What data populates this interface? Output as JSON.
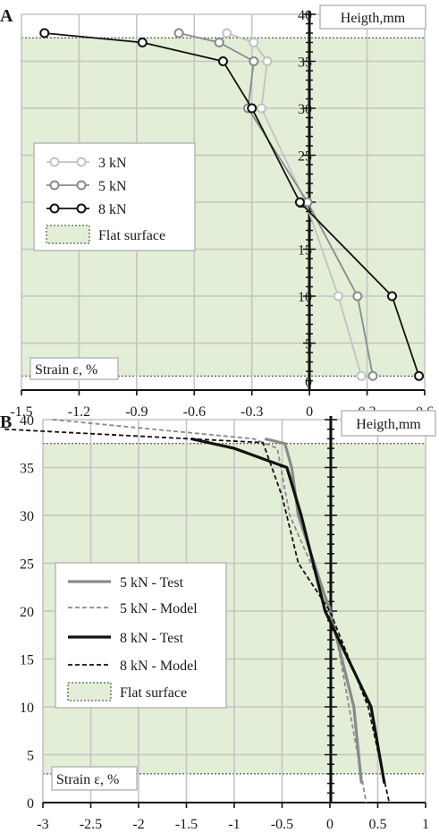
{
  "chart_data": [
    {
      "panel_label": "A",
      "type": "line",
      "xlabel": "Strain ε, %",
      "ylabel": "Heigth,mm",
      "x_ticks": [
        "-1.5",
        "-1.2",
        "-0.9",
        "-0.6",
        "-0.3",
        "0",
        "0.3",
        "0.6"
      ],
      "y_ticks": [
        "0",
        "5",
        "10",
        "15",
        "20",
        "25",
        "30",
        "35",
        "40"
      ],
      "xlim": [
        -1.5,
        0.6
      ],
      "ylim": [
        0,
        40
      ],
      "flat_surface": {
        "name": "Flat surface",
        "y_min": 1.5,
        "y_max": 37.5,
        "color": "#e3eed6"
      },
      "series": [
        {
          "name": "3 kN",
          "color": "#c2c2c2",
          "marker": "circle",
          "x": [
            -0.43,
            -0.29,
            -0.22,
            -0.25,
            -0.02,
            0.15,
            0.27
          ],
          "y": [
            38,
            37,
            35,
            30,
            20,
            10,
            1.5
          ]
        },
        {
          "name": "5 kN",
          "color": "#8a8a8a",
          "marker": "circle",
          "x": [
            -0.68,
            -0.47,
            -0.29,
            -0.32,
            -0.01,
            0.25,
            0.33
          ],
          "y": [
            38,
            37,
            35,
            30,
            20,
            10,
            1.5
          ]
        },
        {
          "name": "8 kN",
          "color": "#111111",
          "marker": "circle",
          "x": [
            -1.38,
            -0.87,
            -0.45,
            -0.3,
            -0.05,
            0.43,
            0.57
          ],
          "y": [
            38,
            37,
            35,
            30,
            20,
            10,
            1.5
          ]
        }
      ],
      "legend_position": "left"
    },
    {
      "panel_label": "B",
      "type": "line",
      "xlabel": "Strain ε, %",
      "ylabel": "Heigth,mm",
      "x_ticks": [
        "-3",
        "-2.5",
        "-2",
        "-1.5",
        "-1",
        "-0.5",
        "0",
        "0.5",
        "1"
      ],
      "y_ticks": [
        "0",
        "5",
        "10",
        "15",
        "20",
        "25",
        "30",
        "35",
        "40"
      ],
      "xlim": [
        -3,
        1
      ],
      "ylim": [
        0,
        40
      ],
      "flat_surface": {
        "name": "Flat surface",
        "y_min": 3,
        "y_max": 37.5,
        "color": "#e3eed6"
      },
      "series": [
        {
          "name": "5 kN - Test",
          "color": "#8a8a8a",
          "dash": "solid",
          "x": [
            -0.68,
            -0.47,
            -0.4,
            -0.33,
            0.0,
            0.25,
            0.33
          ],
          "y": [
            38,
            37.5,
            35,
            30,
            20,
            10,
            2
          ]
        },
        {
          "name": "5 kN - Model",
          "color": "#8a8a8a",
          "dash": "dashed",
          "x": [
            -2.9,
            -0.8,
            -0.55,
            -0.42,
            0.02,
            0.2,
            0.38
          ],
          "y": [
            40,
            38,
            37,
            30,
            20,
            10,
            0
          ]
        },
        {
          "name": "8 kN - Test",
          "color": "#111111",
          "dash": "solid",
          "x": [
            -1.45,
            -1.0,
            -0.45,
            -0.3,
            -0.05,
            0.43,
            0.57
          ],
          "y": [
            38,
            37,
            35,
            30,
            20,
            10,
            2
          ]
        },
        {
          "name": "8 kN - Model",
          "color": "#111111",
          "dash": "dashed",
          "x": [
            -3.4,
            -0.7,
            -0.5,
            -0.33,
            0.0,
            0.4,
            0.62
          ],
          "y": [
            39,
            37.6,
            32,
            25,
            20,
            10,
            0
          ]
        }
      ],
      "legend_position": "left"
    }
  ]
}
